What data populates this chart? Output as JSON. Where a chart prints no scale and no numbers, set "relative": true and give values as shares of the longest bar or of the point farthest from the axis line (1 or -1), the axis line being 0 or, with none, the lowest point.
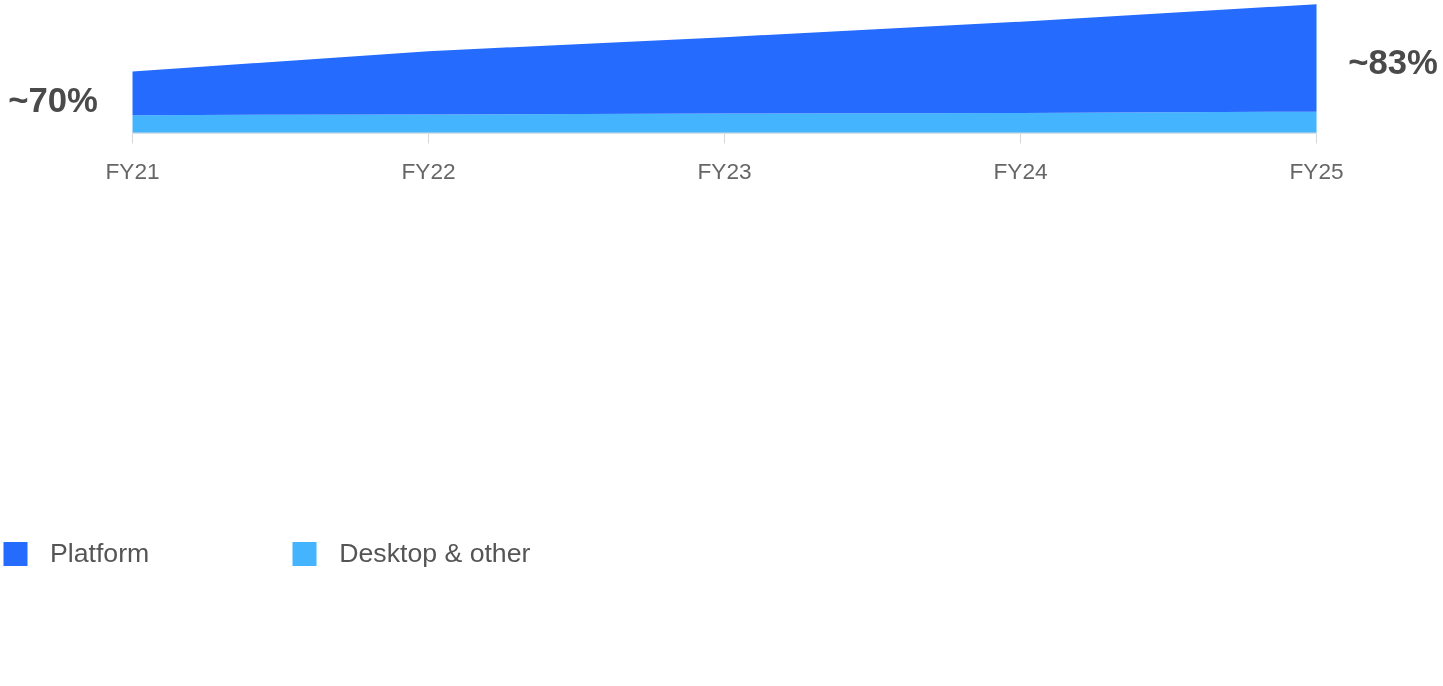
{
  "chart_data": {
    "type": "area",
    "stacked": true,
    "relative": true,
    "categories": [
      "FY21",
      "FY22",
      "FY23",
      "FY24",
      "FY25"
    ],
    "series": [
      {
        "name": "Desktop & other",
        "color": "#45b4fe",
        "values": [
          0.142,
          0.147,
          0.155,
          0.158,
          0.169
        ]
      },
      {
        "name": "Platform",
        "color": "#246bfe",
        "values": [
          0.338,
          0.489,
          0.59,
          0.706,
          0.831
        ]
      }
    ],
    "annotations": [
      "~70%",
      "~83%"
    ],
    "legend": "bottom",
    "grid": false,
    "tick_labels": "x"
  }
}
